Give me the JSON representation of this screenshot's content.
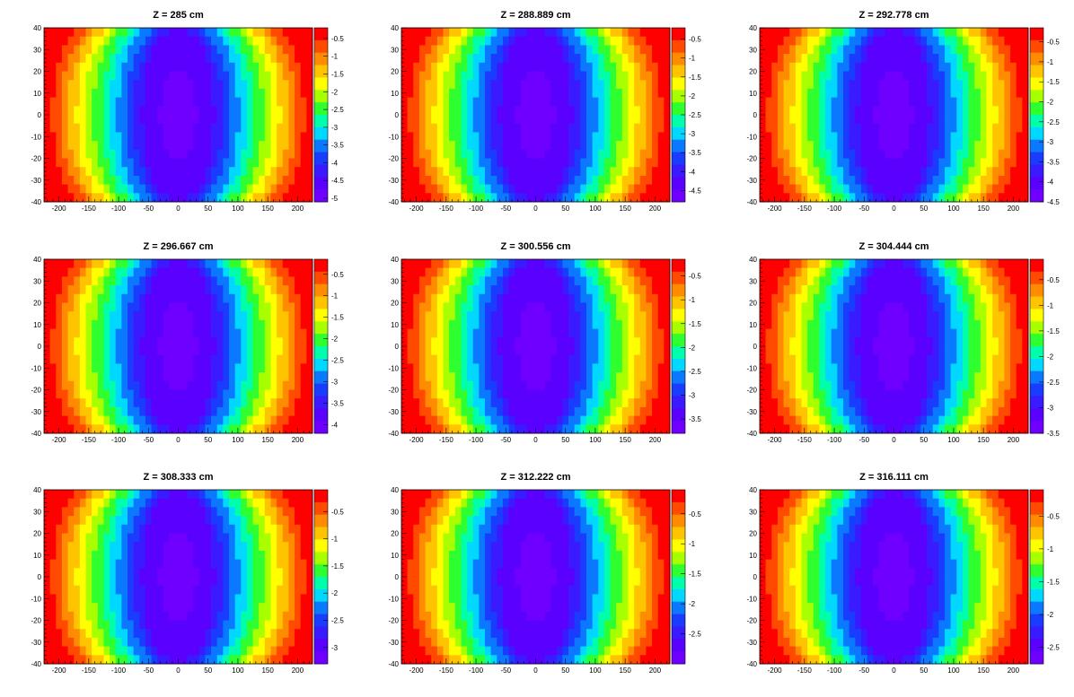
{
  "chart_data": {
    "type": "heatmap",
    "layout": "3x3 grid",
    "x_range": [
      -225,
      225
    ],
    "y_range": [
      -40,
      40
    ],
    "x_ticks": [
      -200,
      -150,
      -100,
      -50,
      0,
      50,
      100,
      150,
      200
    ],
    "y_ticks": [
      -40,
      -30,
      -20,
      -10,
      0,
      10,
      20,
      30,
      40
    ],
    "palette": [
      "#6f00ff",
      "#5a00ff",
      "#3a1aff",
      "#1a3cff",
      "#0a78ff",
      "#00d8ff",
      "#00ffaa",
      "#2fff2f",
      "#a8ff00",
      "#ffff00",
      "#ffc400",
      "#ff8c00",
      "#ff4a00",
      "#ff0000"
    ],
    "panels": [
      {
        "title": "Z = 285 cm",
        "zmin": -5.1,
        "zmax": -0.2,
        "colorbar_ticks": [
          "-0.5",
          "-1",
          "-1.5",
          "-2",
          "-2.5",
          "-3",
          "-3.5",
          "-4",
          "-4.5",
          "-5"
        ],
        "colorbar_values": [
          -0.5,
          -1,
          -1.5,
          -2,
          -2.5,
          -3,
          -3.5,
          -4,
          -4.5,
          -5
        ]
      },
      {
        "title": "Z = 288.889 cm",
        "zmin": -4.8,
        "zmax": -0.2,
        "colorbar_ticks": [
          "-0.5",
          "-1",
          "-1.5",
          "-2",
          "-2.5",
          "-3",
          "-3.5",
          "-4",
          "-4.5"
        ],
        "colorbar_values": [
          -0.5,
          -1,
          -1.5,
          -2,
          -2.5,
          -3,
          -3.5,
          -4,
          -4.5
        ]
      },
      {
        "title": "Z = 292.778 cm",
        "zmin": -4.5,
        "zmax": -0.15,
        "colorbar_ticks": [
          "-0.5",
          "-1",
          "-1.5",
          "-2",
          "-2.5",
          "-3",
          "-3.5",
          "-4",
          "-4.5"
        ],
        "colorbar_values": [
          -0.5,
          -1,
          -1.5,
          -2,
          -2.5,
          -3,
          -3.5,
          -4,
          -4.5
        ]
      },
      {
        "title": "Z = 296.667 cm",
        "zmin": -4.2,
        "zmax": -0.15,
        "colorbar_ticks": [
          "-0.5",
          "-1",
          "-1.5",
          "-2",
          "-2.5",
          "-3",
          "-3.5",
          "-4"
        ],
        "colorbar_values": [
          -0.5,
          -1,
          -1.5,
          -2,
          -2.5,
          -3,
          -3.5,
          -4
        ]
      },
      {
        "title": "Z = 300.556 cm",
        "zmin": -3.8,
        "zmax": -0.15,
        "colorbar_ticks": [
          "-0.5",
          "-1",
          "-1.5",
          "-2",
          "-2.5",
          "-3",
          "-3.5"
        ],
        "colorbar_values": [
          -0.5,
          -1,
          -1.5,
          -2,
          -2.5,
          -3,
          -3.5
        ]
      },
      {
        "title": "Z = 304.444 cm",
        "zmin": -3.5,
        "zmax": -0.1,
        "colorbar_ticks": [
          "-0.5",
          "-1",
          "-1.5",
          "-2",
          "-2.5",
          "-3",
          "-3.5"
        ],
        "colorbar_values": [
          -0.5,
          -1,
          -1.5,
          -2,
          -2.5,
          -3,
          -3.5
        ]
      },
      {
        "title": "Z = 308.333 cm",
        "zmin": -3.3,
        "zmax": -0.1,
        "colorbar_ticks": [
          "-0.5",
          "-1",
          "-1.5",
          "-2",
          "-2.5",
          "-3"
        ],
        "colorbar_values": [
          -0.5,
          -1,
          -1.5,
          -2,
          -2.5,
          -3
        ]
      },
      {
        "title": "Z = 312.222 cm",
        "zmin": -3.0,
        "zmax": -0.1,
        "colorbar_ticks": [
          "-0.5",
          "-1",
          "-1.5",
          "-2",
          "-2.5"
        ],
        "colorbar_values": [
          -0.5,
          -1,
          -1.5,
          -2,
          -2.5
        ]
      },
      {
        "title": "Z = 316.111 cm",
        "zmin": -2.75,
        "zmax": -0.1,
        "colorbar_ticks": [
          "-0.5",
          "-1",
          "-1.5",
          "-2",
          "-2.5"
        ],
        "colorbar_values": [
          -0.5,
          -1,
          -1.5,
          -2,
          -2.5
        ]
      }
    ]
  }
}
